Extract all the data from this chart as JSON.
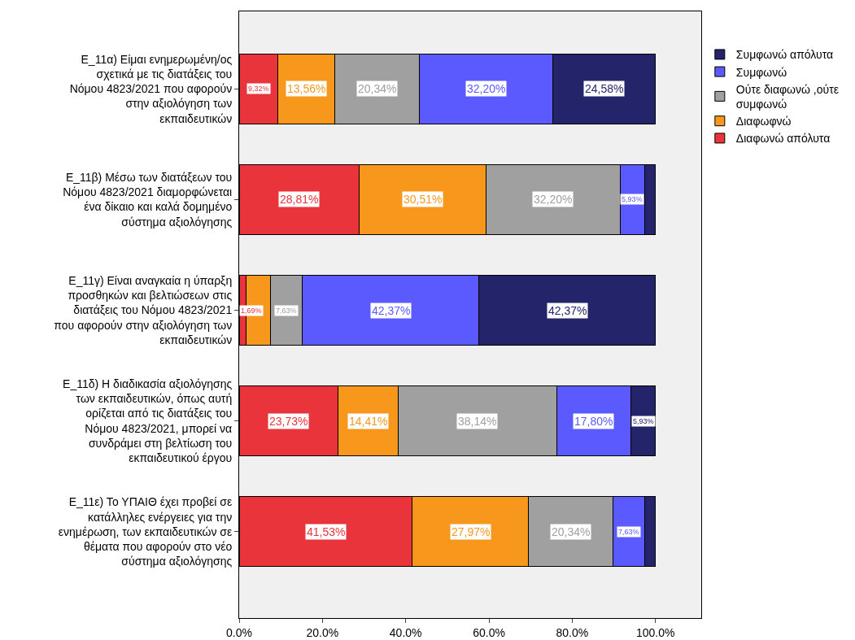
{
  "chart_data": {
    "type": "bar",
    "orientation": "horizontal",
    "stacked": true,
    "legend": "top right",
    "grid": false,
    "categories": [
      "Ε_11α) Είμαι ενημερωμένη/ος σχετικά με τις διατάξεις του Νόμου 4823/2021 που αφορούν στην αξιολόγηση των εκπαιδευτικών",
      "Ε_11β) Μέσω των διατάξεων του Νόμου 4823/2021 διαμορφώνεται ένα δίκαιο και καλά δομημένο σύστημα αξιολόγησης",
      "Ε_11γ) Είναι αναγκαία η ύπαρξη προσθηκών και βελτιώσεων στις διατάξεις του Νόμου 4823/2021 που αφορούν στην αξιολόγηση των εκπαιδευτικών",
      "Ε_11δ) Η διαδικασία αξιολόγησης των εκπαιδευτικών, όπως αυτή ορίζεται από τις διατάξεις του Νόμου 4823/2021, μπορεί να συνδράμει στη βελτίωση του εκπαιδευτικού έργου",
      "Ε_11ε) Το ΥΠΑΙΘ έχει προβεί σε κατάλληλες ενέργειες για την ενημέρωση, των εκπαιδευτικών σε θέματα που αφορούν στο νέο σύστημα αξιολόγησης"
    ],
    "xlim": [
      0,
      111
    ],
    "xticks": [
      {
        "value": 0,
        "label": "0.0%"
      },
      {
        "value": 20,
        "label": "20.0%"
      },
      {
        "value": 40,
        "label": "40.0%"
      },
      {
        "value": 60,
        "label": "60.0%"
      },
      {
        "value": 80,
        "label": "80.0%"
      },
      {
        "value": 100,
        "label": "100.0%"
      }
    ],
    "series": [
      {
        "name": "Διαφωνώ απόλυτα",
        "color": "#e8343a",
        "values": [
          9.32,
          28.81,
          1.69,
          23.73,
          41.53
        ],
        "value_labels": [
          "9,32%",
          "28,81%",
          "1,69%",
          "23,73%",
          "41,53%"
        ]
      },
      {
        "name": "Διαφωφνώ",
        "color": "#f7981d",
        "values": [
          13.56,
          30.51,
          5.9,
          14.41,
          27.97
        ],
        "value_labels": [
          "13,56%",
          "30,51%",
          null,
          "14,41%",
          "27,97%"
        ]
      },
      {
        "name": "Ούτε διαφωνώ ,ούτε συμφωνώ",
        "color": "#a0a0a0",
        "values": [
          20.34,
          32.2,
          7.63,
          38.14,
          20.34
        ],
        "value_labels": [
          "20,34%",
          "32,20%",
          "7,63%",
          "38,14%",
          "20,34%"
        ]
      },
      {
        "name": "Συμφωνώ",
        "color": "#5a5aff",
        "values": [
          32.2,
          5.93,
          42.37,
          17.8,
          7.63
        ],
        "value_labels": [
          "32,20%",
          "5,93%",
          "42,37%",
          "17,80%",
          "7,63%"
        ]
      },
      {
        "name": "Συμφωνώ απόλυτα",
        "color": "#24246b",
        "values": [
          24.58,
          2.5,
          42.37,
          5.93,
          2.5
        ],
        "value_labels": [
          "24,58%",
          null,
          "42,37%",
          "5,93%",
          null
        ]
      }
    ]
  }
}
